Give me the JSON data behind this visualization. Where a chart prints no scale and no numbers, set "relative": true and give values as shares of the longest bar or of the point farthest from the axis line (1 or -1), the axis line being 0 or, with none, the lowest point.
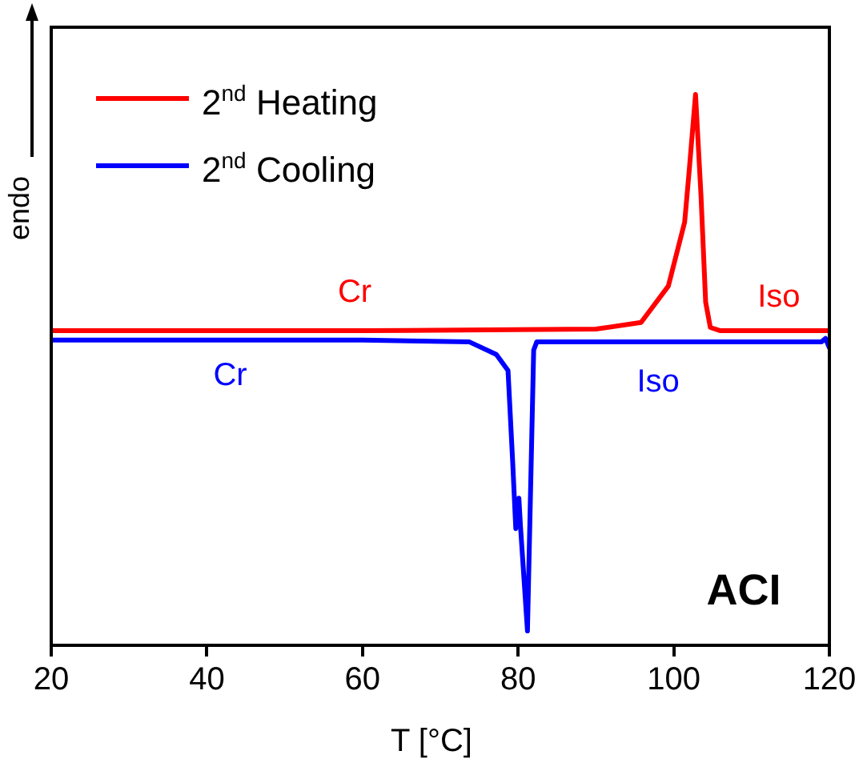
{
  "chart_data": {
    "type": "line",
    "relative": true,
    "xlabel": "T [°C]",
    "ylabel": "endo",
    "xlim": [
      20,
      120
    ],
    "xticks": [
      20,
      40,
      60,
      80,
      100,
      120
    ],
    "legend": "top left",
    "grid": false,
    "marker": "none",
    "line_style": "solid",
    "annotations": [
      "Cr",
      "Cr",
      "Iso",
      "Iso",
      "ACI"
    ],
    "series": [
      {
        "name": "2$^{nd}$ Heating",
        "color": "#ff0000",
        "x": [
          20,
          60,
          90,
          95.8,
          99.3,
          101.4,
          102,
          102.8,
          103.5,
          104.1,
          104.7,
          106,
          120
        ],
        "values": [
          0.571,
          0.571,
          0.574,
          0.586,
          0.652,
          0.768,
          0.864,
          1,
          0.817,
          0.623,
          0.577,
          0.571,
          0.571
        ]
      },
      {
        "name": "2$^{nd}$ Cooling",
        "color": "#0000ff",
        "x": [
          20,
          60,
          73.7,
          77.2,
          78.7,
          79.3,
          79.7,
          80.1,
          80.3,
          81.2,
          82,
          82.4,
          100,
          119,
          119.5,
          120
        ],
        "values": [
          0.554,
          0.554,
          0.551,
          0.528,
          0.499,
          0.333,
          0.212,
          0.267,
          0.217,
          0.026,
          0.536,
          0.551,
          0.551,
          0.551,
          0.557,
          0.54
        ]
      }
    ]
  }
}
